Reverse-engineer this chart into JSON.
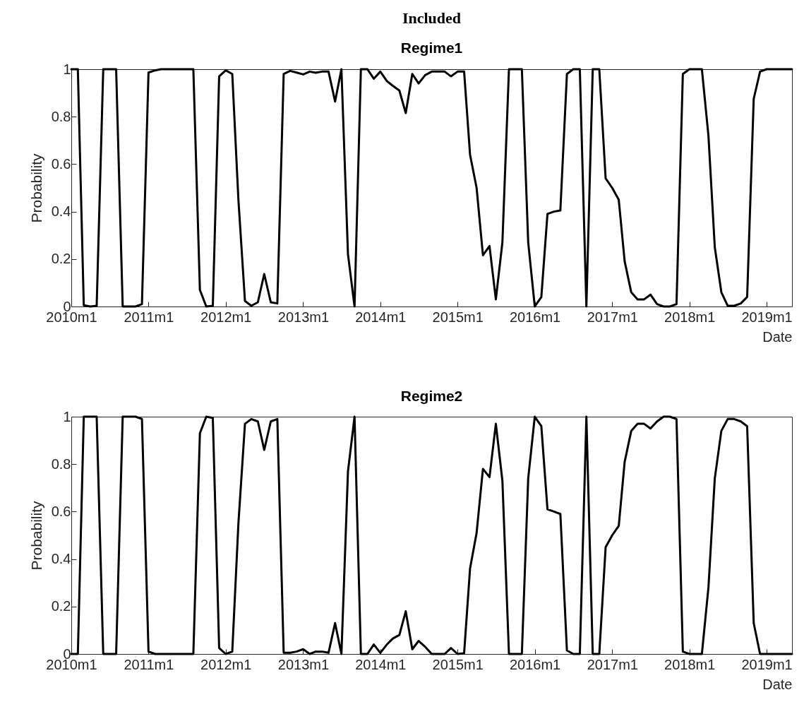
{
  "chart_data": [
    {
      "type": "line",
      "title": "Included",
      "subtitle": "Regime1",
      "xlabel": "Date",
      "ylabel": "Probability",
      "x": [
        "2010-01",
        "2010-02",
        "2010-03",
        "2010-04",
        "2010-05",
        "2010-06",
        "2010-07",
        "2010-08",
        "2010-09",
        "2010-10",
        "2010-11",
        "2010-12",
        "2011-01",
        "2011-02",
        "2011-03",
        "2011-04",
        "2011-05",
        "2011-06",
        "2011-07",
        "2011-08",
        "2011-09",
        "2011-10",
        "2011-11",
        "2011-12",
        "2012-01",
        "2012-02",
        "2012-03",
        "2012-04",
        "2012-05",
        "2012-06",
        "2012-07",
        "2012-08",
        "2012-09",
        "2012-10",
        "2012-11",
        "2012-12",
        "2013-01",
        "2013-02",
        "2013-03",
        "2013-04",
        "2013-05",
        "2013-06",
        "2013-07",
        "2013-08",
        "2013-09",
        "2013-10",
        "2013-11",
        "2013-12",
        "2014-01",
        "2014-02",
        "2014-03",
        "2014-04",
        "2014-05",
        "2014-06",
        "2014-07",
        "2014-08",
        "2014-09",
        "2014-10",
        "2014-11",
        "2014-12",
        "2015-01",
        "2015-02",
        "2015-03",
        "2015-04",
        "2015-05",
        "2015-06",
        "2015-07",
        "2015-08",
        "2015-09",
        "2015-10",
        "2015-11",
        "2015-12",
        "2016-01",
        "2016-02",
        "2016-03",
        "2016-04",
        "2016-05",
        "2016-06",
        "2016-07",
        "2016-08",
        "2016-09",
        "2016-10",
        "2016-11",
        "2016-12",
        "2017-01",
        "2017-02",
        "2017-03",
        "2017-04",
        "2017-05",
        "2017-06",
        "2017-07",
        "2017-08",
        "2017-09",
        "2017-10",
        "2017-11",
        "2017-12",
        "2018-01",
        "2018-02",
        "2018-03",
        "2018-04",
        "2018-05",
        "2018-06",
        "2018-07",
        "2018-08",
        "2018-09",
        "2018-10",
        "2018-11",
        "2018-12",
        "2019-01",
        "2019-02",
        "2019-03",
        "2019-04",
        "2019-05"
      ],
      "xlim": [
        "2010-01",
        "2019-05"
      ],
      "xticks": [
        {
          "value": "2010-01",
          "label": "2010m1"
        },
        {
          "value": "2011-01",
          "label": "2011m1"
        },
        {
          "value": "2012-01",
          "label": "2012m1"
        },
        {
          "value": "2013-01",
          "label": "2013m1"
        },
        {
          "value": "2014-01",
          "label": "2014m1"
        },
        {
          "value": "2015-01",
          "label": "2015m1"
        },
        {
          "value": "2016-01",
          "label": "2016m1"
        },
        {
          "value": "2017-01",
          "label": "2017m1"
        },
        {
          "value": "2018-01",
          "label": "2018m1"
        },
        {
          "value": "2019-01",
          "label": "2019m1"
        }
      ],
      "ylim": [
        0,
        1
      ],
      "yticks": [
        0,
        0.2,
        0.4,
        0.6,
        0.8,
        1
      ],
      "series": [
        {
          "color": "#000000",
          "values": [
            1,
            1,
            0.005,
            0,
            0.003,
            1,
            1,
            1,
            0,
            0,
            0,
            0.01,
            0.986,
            0.995,
            1,
            1,
            1,
            1,
            1,
            1,
            0.07,
            0,
            0.003,
            0.97,
            0.995,
            0.98,
            0.45,
            0.023,
            0.003,
            0.018,
            0.137,
            0.018,
            0.013,
            0.98,
            0.993,
            0.986,
            0.978,
            0.99,
            0.985,
            0.99,
            0.99,
            0.864,
            1,
            0.22,
            0,
            1,
            1,
            0.96,
            0.99,
            0.95,
            0.93,
            0.91,
            0.815,
            0.98,
            0.94,
            0.975,
            0.99,
            0.99,
            0.99,
            0.97,
            0.99,
            0.99,
            0.64,
            0.5,
            0.216,
            0.255,
            0.03,
            0.27,
            1,
            1,
            1,
            0.27,
            0,
            0.04,
            0.39,
            0.4,
            0.405,
            0.98,
            1,
            1,
            0,
            1,
            1,
            0.54,
            0.5,
            0.45,
            0.19,
            0.06,
            0.03,
            0.03,
            0.05,
            0.01,
            0,
            0,
            0.01,
            0.98,
            1,
            1,
            1,
            0.72,
            0.25,
            0.06,
            0.003,
            0.003,
            0.013,
            0.04,
            0.875,
            0.99,
            1,
            1,
            1,
            1,
            1
          ]
        }
      ]
    },
    {
      "type": "line",
      "title": "Regime2",
      "xlabel": "Date",
      "ylabel": "Probability",
      "x": [
        "2010-01",
        "2010-02",
        "2010-03",
        "2010-04",
        "2010-05",
        "2010-06",
        "2010-07",
        "2010-08",
        "2010-09",
        "2010-10",
        "2010-11",
        "2010-12",
        "2011-01",
        "2011-02",
        "2011-03",
        "2011-04",
        "2011-05",
        "2011-06",
        "2011-07",
        "2011-08",
        "2011-09",
        "2011-10",
        "2011-11",
        "2011-12",
        "2012-01",
        "2012-02",
        "2012-03",
        "2012-04",
        "2012-05",
        "2012-06",
        "2012-07",
        "2012-08",
        "2012-09",
        "2012-10",
        "2012-11",
        "2012-12",
        "2013-01",
        "2013-02",
        "2013-03",
        "2013-04",
        "2013-05",
        "2013-06",
        "2013-07",
        "2013-08",
        "2013-09",
        "2013-10",
        "2013-11",
        "2013-12",
        "2014-01",
        "2014-02",
        "2014-03",
        "2014-04",
        "2014-05",
        "2014-06",
        "2014-07",
        "2014-08",
        "2014-09",
        "2014-10",
        "2014-11",
        "2014-12",
        "2015-01",
        "2015-02",
        "2015-03",
        "2015-04",
        "2015-05",
        "2015-06",
        "2015-07",
        "2015-08",
        "2015-09",
        "2015-10",
        "2015-11",
        "2015-12",
        "2016-01",
        "2016-02",
        "2016-03",
        "2016-04",
        "2016-05",
        "2016-06",
        "2016-07",
        "2016-08",
        "2016-09",
        "2016-10",
        "2016-11",
        "2016-12",
        "2017-01",
        "2017-02",
        "2017-03",
        "2017-04",
        "2017-05",
        "2017-06",
        "2017-07",
        "2017-08",
        "2017-09",
        "2017-10",
        "2017-11",
        "2017-12",
        "2018-01",
        "2018-02",
        "2018-03",
        "2018-04",
        "2018-05",
        "2018-06",
        "2018-07",
        "2018-08",
        "2018-09",
        "2018-10",
        "2018-11",
        "2018-12",
        "2019-01",
        "2019-02",
        "2019-03",
        "2019-04",
        "2019-05"
      ],
      "xlim": [
        "2010-01",
        "2019-05"
      ],
      "xticks": [
        {
          "value": "2010-01",
          "label": "2010m1"
        },
        {
          "value": "2011-01",
          "label": "2011m1"
        },
        {
          "value": "2012-01",
          "label": "2012m1"
        },
        {
          "value": "2013-01",
          "label": "2013m1"
        },
        {
          "value": "2014-01",
          "label": "2014m1"
        },
        {
          "value": "2015-01",
          "label": "2015m1"
        },
        {
          "value": "2016-01",
          "label": "2016m1"
        },
        {
          "value": "2017-01",
          "label": "2017m1"
        },
        {
          "value": "2018-01",
          "label": "2018m1"
        },
        {
          "value": "2019-01",
          "label": "2019m1"
        }
      ],
      "ylim": [
        0,
        1
      ],
      "yticks": [
        0,
        0.2,
        0.4,
        0.6,
        0.8,
        1
      ],
      "series": [
        {
          "color": "#000000",
          "values": [
            0,
            0,
            1,
            1,
            1,
            0,
            0,
            0,
            1,
            1,
            1,
            0.99,
            0.01,
            0,
            0,
            0,
            0,
            0,
            0,
            0,
            0.93,
            1,
            0.995,
            0.025,
            0,
            0.01,
            0.55,
            0.97,
            0.99,
            0.98,
            0.86,
            0.98,
            0.99,
            0.005,
            0.005,
            0.01,
            0.02,
            0,
            0.01,
            0.01,
            0.005,
            0.13,
            0,
            0.77,
            1,
            0,
            0,
            0.04,
            0.005,
            0.04,
            0.065,
            0.08,
            0.18,
            0.02,
            0.055,
            0.03,
            0,
            0,
            0,
            0.025,
            0,
            0.003,
            0.36,
            0.51,
            0.78,
            0.745,
            0.97,
            0.73,
            0,
            0,
            0,
            0.74,
            1,
            0.96,
            0.61,
            0.6,
            0.59,
            0.015,
            0,
            0,
            1,
            0,
            0,
            0.45,
            0.5,
            0.54,
            0.81,
            0.94,
            0.97,
            0.97,
            0.95,
            0.98,
            1,
            1,
            0.99,
            0.01,
            0,
            0,
            0,
            0.28,
            0.74,
            0.94,
            0.99,
            0.99,
            0.98,
            0.96,
            0.13,
            0,
            0,
            0,
            0,
            0,
            0
          ]
        }
      ]
    }
  ]
}
